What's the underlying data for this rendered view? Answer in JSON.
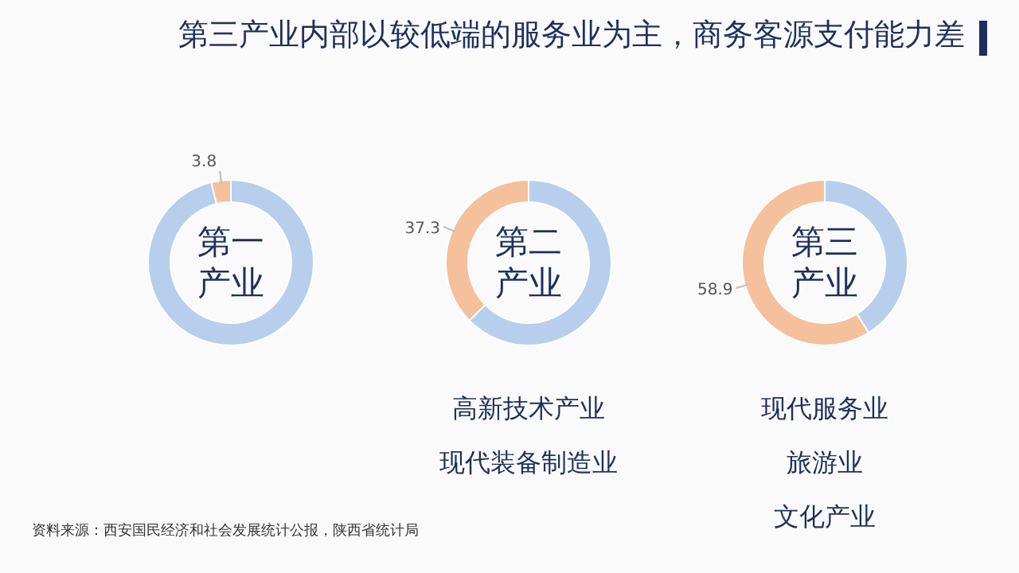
{
  "chart_data": [
    {
      "type": "donut",
      "title": "第三产业内部以较低端的服务业为主，商务客源支付能力差",
      "categories": [
        null,
        null
      ],
      "values": [
        96.2,
        3.8
      ],
      "colors": [
        "#b7cfec",
        "#f5c09c"
      ],
      "value_labels": [
        null,
        "3.8"
      ],
      "annotations": [
        "第一产业",
        "资料来源：西安国民经济和社会发展统计公报，陕西省统计局"
      ]
    },
    {
      "type": "donut",
      "categories": [
        null,
        null
      ],
      "values": [
        62.7,
        37.3
      ],
      "colors": [
        "#b7cfec",
        "#f5c09c"
      ],
      "value_labels": [
        null,
        "37.3"
      ],
      "annotations": [
        "第二产业",
        "高新技术产业",
        "现代装备制造业"
      ]
    },
    {
      "type": "donut",
      "categories": [
        null,
        null
      ],
      "values": [
        41.1,
        58.9
      ],
      "colors": [
        "#b7cfec",
        "#f5c09c"
      ],
      "value_labels": [
        null,
        "58.9"
      ],
      "annotations": [
        "第三产业",
        "现代服务业",
        "旅游业",
        "文化产业"
      ]
    }
  ]
}
